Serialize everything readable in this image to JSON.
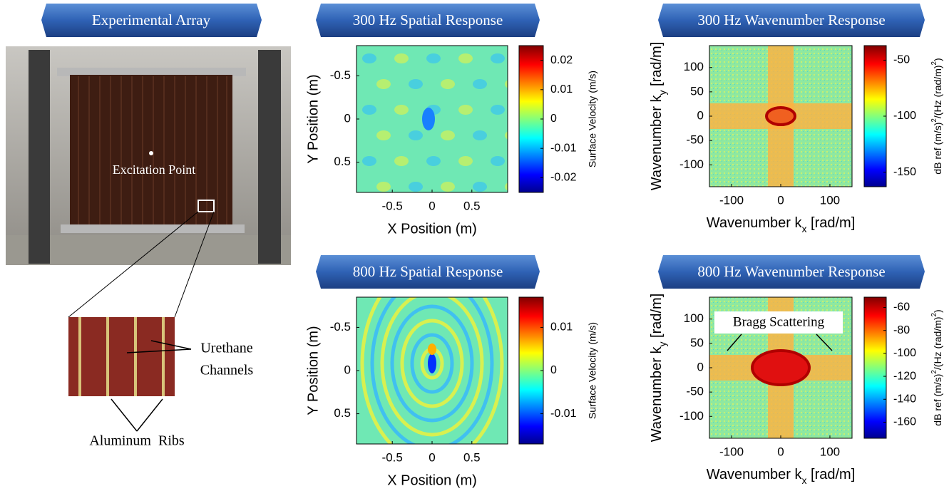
{
  "photo_panel": {
    "title": "Experimental Array",
    "excitation_label": "Excitation Point",
    "inset_labels": {
      "channels": [
        "Urethane",
        "Channels"
      ],
      "ribs": "Aluminum  Ribs"
    }
  },
  "panels": [
    {
      "title": "300 Hz Spatial Response",
      "x_label": "X Position (m)",
      "y_label": "Y Position (m)",
      "xlim": [
        -0.95,
        0.95
      ],
      "ylim": [
        0.85,
        -0.85
      ],
      "xticks": [
        -0.5,
        0,
        0.5
      ],
      "yticks": [
        -0.5,
        0,
        0.5
      ],
      "colorbar": {
        "label": "Surface Velocity (m/s)",
        "lim": [
          -0.025,
          0.025
        ],
        "ticks": [
          0.02,
          0.01,
          0,
          -0.01,
          -0.02
        ]
      }
    },
    {
      "title": "300 Hz Wavenumber Response",
      "x_label": [
        "Wavenumber k",
        "x",
        " [rad/m]"
      ],
      "y_label": [
        "Wavenumber k",
        "y",
        " [rad/m]"
      ],
      "xlim": [
        -145,
        145
      ],
      "ylim": [
        -145,
        145
      ],
      "xticks": [
        -100,
        0,
        100
      ],
      "yticks": [
        100,
        50,
        0,
        -50,
        -100
      ],
      "colorbar": {
        "label": [
          "dB ref (m/s)",
          "2",
          "/(Hz (rad/m)",
          "2",
          ")"
        ],
        "lim": [
          -163,
          -37
        ],
        "ticks": [
          -50,
          -100,
          -150
        ]
      }
    },
    {
      "title": "800 Hz Spatial Response",
      "x_label": "X Position (m)",
      "y_label": "Y Position (m)",
      "xlim": [
        -0.95,
        0.95
      ],
      "ylim": [
        0.85,
        -0.85
      ],
      "xticks": [
        -0.5,
        0,
        0.5
      ],
      "yticks": [
        -0.5,
        0,
        0.5
      ],
      "colorbar": {
        "label": "Surface Velocity (m/s)",
        "lim": [
          -0.017,
          0.017
        ],
        "ticks": [
          0.01,
          0,
          -0.01
        ]
      }
    },
    {
      "title": "800 Hz Wavenumber Response",
      "x_label": [
        "Wavenumber k",
        "x",
        " [rad/m]"
      ],
      "y_label": [
        "Wavenumber k",
        "y",
        " [rad/m]"
      ],
      "xlim": [
        -145,
        145
      ],
      "ylim": [
        -145,
        145
      ],
      "xticks": [
        -100,
        0,
        100
      ],
      "yticks": [
        100,
        50,
        0,
        -50,
        -100
      ],
      "colorbar": {
        "label": [
          "dB ref (m/s)",
          "2",
          "/(Hz (rad/m)",
          "2",
          ")"
        ],
        "lim": [
          -174,
          -51
        ],
        "ticks": [
          -60,
          -80,
          -100,
          -120,
          -140,
          -160
        ]
      },
      "annotation": "Bragg Scattering"
    }
  ]
}
